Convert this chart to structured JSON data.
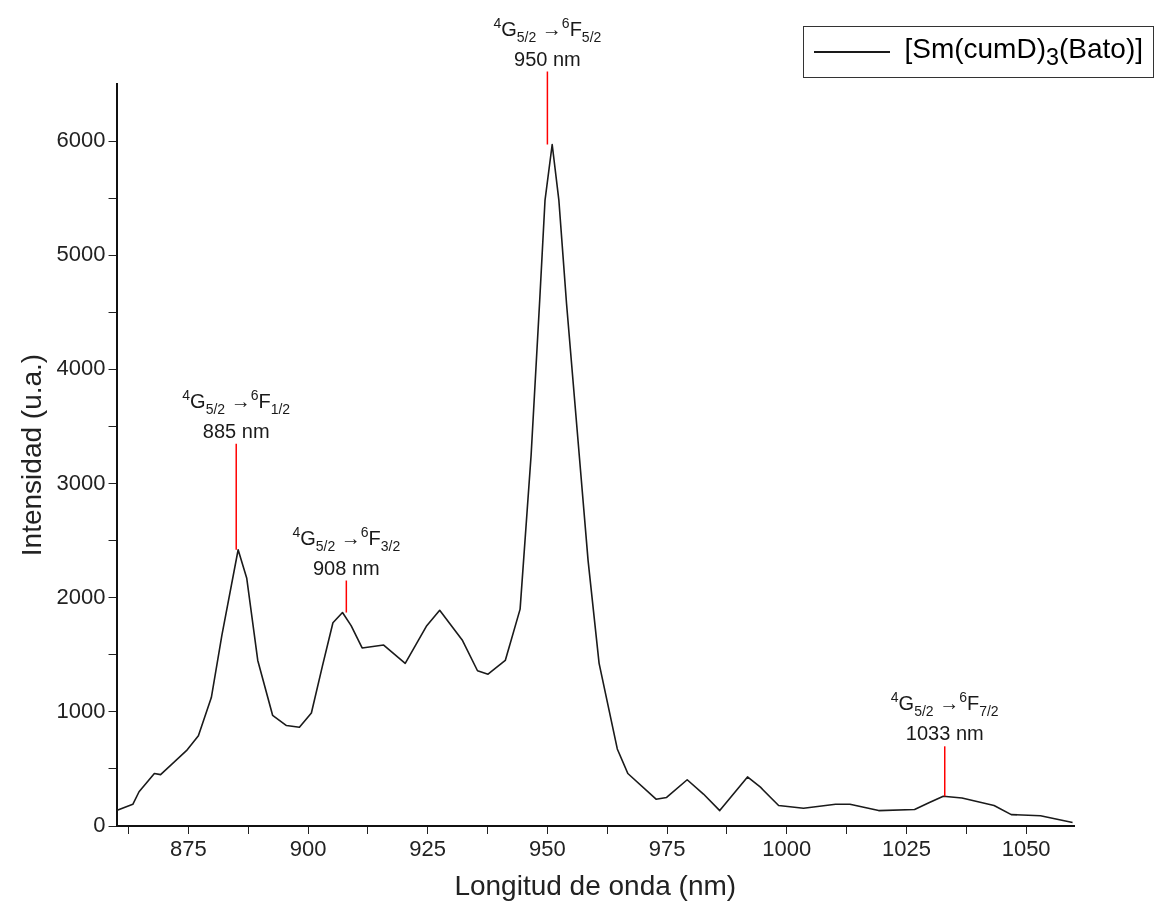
{
  "chart_data": {
    "type": "line",
    "xlabel": "Longitud de onda (nm)",
    "ylabel": "Intensidad (u.a.)",
    "xlim": [
      860,
      1060
    ],
    "xticks": [
      {
        "value": 862.5,
        "label": null
      },
      875,
      {
        "value": 887.5,
        "label": null
      },
      900,
      {
        "value": 912.5,
        "label": null
      },
      925,
      {
        "value": 937.5,
        "label": null
      },
      950,
      {
        "value": 962.5,
        "label": null
      },
      975,
      {
        "value": 987.5,
        "label": null
      },
      1000,
      {
        "value": 1012.5,
        "label": null
      },
      1025,
      {
        "value": 1037.5,
        "label": null
      },
      1050
    ],
    "ylim": [
      0,
      6500
    ],
    "yticks": [
      0,
      {
        "value": 500,
        "label": null
      },
      1000,
      {
        "value": 1500,
        "label": null
      },
      2000,
      {
        "value": 2500,
        "label": null
      },
      3000,
      {
        "value": 3500,
        "label": null
      },
      4000,
      {
        "value": 4500,
        "label": null
      },
      5000,
      {
        "value": 5500,
        "label": null
      },
      6000
    ],
    "grid": false,
    "legend": "top right",
    "marker": "none",
    "line_style": "solid",
    "series": [
      {
        "name": "[Sm(cumD)$_{3}$(Bato)]",
        "color": "#1a1a1a",
        "x": [
          860,
          863.4,
          864.7,
          867.9,
          869.2,
          874.6,
          877.1,
          879.8,
          882.0,
          885.4,
          887.2,
          889.5,
          892.6,
          895.5,
          898.2,
          900.7,
          903.0,
          905.2,
          907.2,
          909.0,
          911.3,
          915.8,
          920.3,
          924.8,
          927.5,
          932.2,
          935.4,
          937.6,
          941.2,
          944.3,
          946.6,
          948.4,
          949.5,
          951.0,
          952.4,
          954.0,
          958.5,
          960.8,
          964.6,
          966.8,
          972.7,
          974.9,
          979.2,
          982.6,
          986.0,
          991.8,
          994.5,
          998.3,
          1003.5,
          1010.2,
          1013.2,
          1019.2,
          1026.7,
          1029.8,
          1032.7,
          1036.6,
          1043.3,
          1046.9,
          1053.0,
          1059.7
        ],
        "values": [
          135,
          190,
          300,
          460,
          450,
          660,
          790,
          1125,
          1670,
          2420,
          2170,
          1450,
          970,
          880,
          865,
          990,
          1400,
          1780,
          1870,
          1755,
          1560,
          1585,
          1425,
          1755,
          1890,
          1630,
          1360,
          1330,
          1450,
          1900,
          3250,
          4610,
          5480,
          5970,
          5480,
          4575,
          2325,
          1425,
          675,
          460,
          235,
          250,
          405,
          280,
          135,
          430,
          340,
          180,
          155,
          190,
          190,
          135,
          145,
          205,
          260,
          245,
          180,
          100,
          90,
          30
        ]
      }
    ],
    "annotations": [
      {
        "text": "$^{4}$G$_{5/2}$ →$^{6}$F$_{1/2}$\n885 nm",
        "x": 885,
        "y": 2420
      },
      {
        "text": "$^{4}$G$_{5/2}$ →$^{6}$F$_{3/2}$\n908 nm",
        "x": 908,
        "y": 1870
      },
      {
        "text": "$^{4}$G$_{5/2}$ →$^{6}$F$_{5/2}$\n950 nm",
        "x": 950,
        "y": 5970
      },
      {
        "text": "$^{4}$G$_{5/2}$ →$^{6}$F$_{7/2}$\n1033 nm",
        "x": 1033,
        "y": 260
      }
    ]
  }
}
